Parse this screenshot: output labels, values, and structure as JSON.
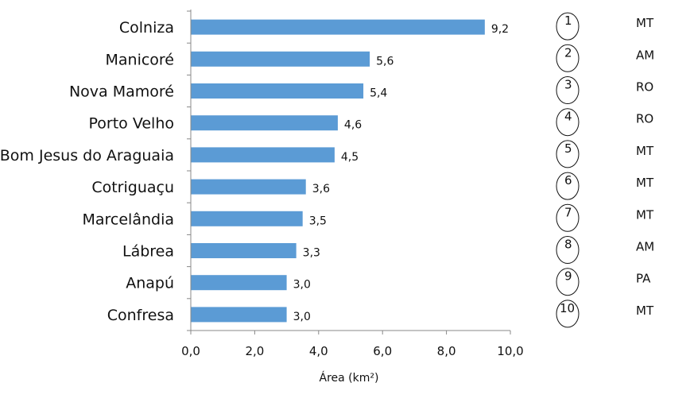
{
  "chart_data": {
    "type": "bar",
    "orientation": "horizontal",
    "categories": [
      "Colniza",
      "Manicoré",
      "Nova Mamoré",
      "Porto Velho",
      "Bom Jesus do Araguaia",
      "Cotriguaçu",
      "Marcelândia",
      "Lábrea",
      "Anapú",
      "Confresa"
    ],
    "values": [
      9.2,
      5.6,
      5.4,
      4.6,
      4.5,
      3.6,
      3.5,
      3.3,
      3.0,
      3.0
    ],
    "value_labels": [
      "9,2",
      "5,6",
      "5,4",
      "4,6",
      "4,5",
      "3,6",
      "3,5",
      "3,3",
      "3,0",
      "3,0"
    ],
    "xlabel": "Área (km²)",
    "xlim": [
      0,
      10
    ],
    "x_ticks": [
      "0,0",
      "2,0",
      "4,0",
      "6,0",
      "8,0",
      "10,0"
    ],
    "grid": false,
    "bar_color": "#5b9bd5",
    "ranks": [
      "1",
      "2",
      "3",
      "4",
      "5",
      "6",
      "7",
      "8",
      "9",
      "10"
    ],
    "states": [
      "MT",
      "AM",
      "RO",
      "RO",
      "MT",
      "MT",
      "MT",
      "AM",
      "PA",
      "MT"
    ]
  }
}
